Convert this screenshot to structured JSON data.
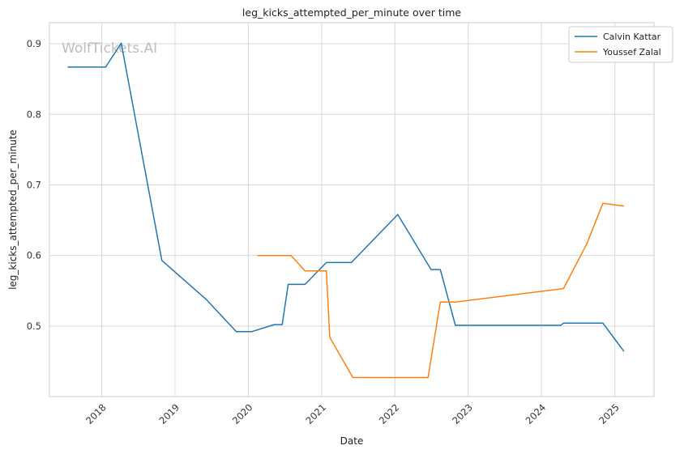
{
  "chart_data": {
    "type": "line",
    "title": "leg_kicks_attempted_per_minute over time",
    "xlabel": "Date",
    "ylabel": "leg_kicks_attempted_per_minute",
    "watermark": "WolfTickets.AI",
    "x_ticks": [
      "2018",
      "2019",
      "2020",
      "2021",
      "2022",
      "2023",
      "2024",
      "2025"
    ],
    "y_ticks": [
      "0.5",
      "0.6",
      "0.7",
      "0.8",
      "0.9"
    ],
    "xlim": [
      "2017-04-15",
      "2025-07-15"
    ],
    "ylim": [
      0.4,
      0.93
    ],
    "grid": true,
    "legend_position": "top-right",
    "series": [
      {
        "name": "Calvin Kattar",
        "color": "#1f77b4",
        "points": [
          [
            "2017-07-15",
            0.867
          ],
          [
            "2018-01-20",
            0.867
          ],
          [
            "2018-04-08",
            0.901
          ],
          [
            "2018-10-27",
            0.593
          ],
          [
            "2019-06-08",
            0.537
          ],
          [
            "2019-11-02",
            0.492
          ],
          [
            "2020-01-18",
            0.492
          ],
          [
            "2020-05-09",
            0.502
          ],
          [
            "2020-06-18",
            0.502
          ],
          [
            "2020-07-18",
            0.559
          ],
          [
            "2020-10-10",
            0.559
          ],
          [
            "2021-01-24",
            0.59
          ],
          [
            "2021-05-29",
            0.59
          ],
          [
            "2022-01-15",
            0.658
          ],
          [
            "2022-06-30",
            0.58
          ],
          [
            "2022-08-15",
            0.58
          ],
          [
            "2022-10-29",
            0.501
          ],
          [
            "2024-04-06",
            0.501
          ],
          [
            "2024-04-20",
            0.504
          ],
          [
            "2024-11-02",
            0.504
          ],
          [
            "2025-02-15",
            0.464
          ]
        ]
      },
      {
        "name": "Youssef Zalal",
        "color": "#ff7f0e",
        "points": [
          [
            "2020-02-15",
            0.6
          ],
          [
            "2020-08-01",
            0.6
          ],
          [
            "2020-10-10",
            0.578
          ],
          [
            "2021-01-24",
            0.578
          ],
          [
            "2021-02-10",
            0.484
          ],
          [
            "2021-06-05",
            0.427
          ],
          [
            "2022-06-15",
            0.427
          ],
          [
            "2022-08-15",
            0.534
          ],
          [
            "2022-10-29",
            0.534
          ],
          [
            "2024-04-20",
            0.553
          ],
          [
            "2024-08-15",
            0.617
          ],
          [
            "2024-11-02",
            0.674
          ],
          [
            "2025-02-15",
            0.67
          ]
        ]
      }
    ]
  }
}
